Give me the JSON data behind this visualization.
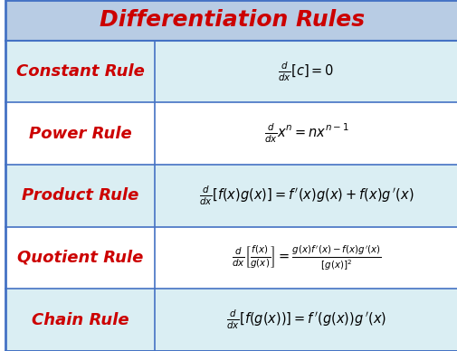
{
  "title": "Differentiation Rules",
  "title_color": "#CC0000",
  "title_fontsize": 18,
  "header_bg": "#B8CCE4",
  "row_bg_odd": "#DAEEF3",
  "row_bg_even": "#FFFFFF",
  "rule_color": "#CC0000",
  "formula_color": "#000000",
  "border_color": "#4472C4",
  "rows": [
    {
      "name": "Constant Rule",
      "formula": "$\\frac{d}{dx}[c] = 0$"
    },
    {
      "name": "Power Rule",
      "formula": "$\\frac{d}{dx}x^{n} = nx^{n-1}$"
    },
    {
      "name": "Product Rule",
      "formula": "$\\frac{d}{dx}[f(x)g(x)] = f\\,'(x)g(x) + f(x)g\\,'(x)$"
    },
    {
      "name": "Quotient Rule",
      "formula": "$\\frac{d}{dx}\\left[\\frac{f(x)}{g(x)}\\right] = \\frac{g(x)f\\,'(x) - f(x)g\\,'(x)}{\\left[g(x)\\right]^{2}}$"
    },
    {
      "name": "Chain Rule",
      "formula": "$\\frac{d}{dx}\\left[f(g(x))\\right] = f\\,'(g(x))g\\,'(x)$"
    }
  ],
  "col_split": 0.33,
  "figsize": [
    5.06,
    3.88
  ],
  "dpi": 100
}
